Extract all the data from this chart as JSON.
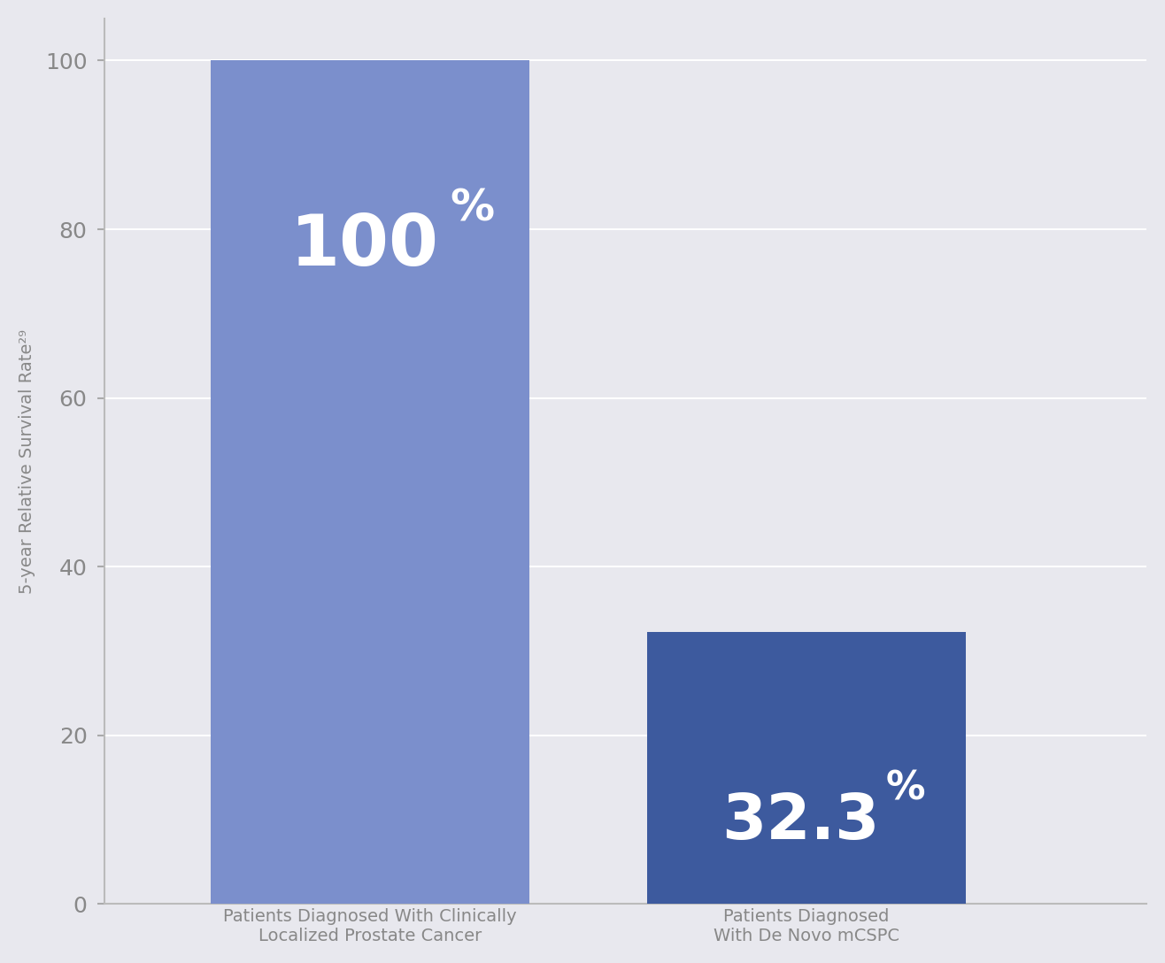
{
  "categories": [
    "Patients Diagnosed With Clinically\nLocalized Prostate Cancer",
    "Patients Diagnosed\nWith De Novo mCSPC"
  ],
  "values": [
    100,
    32.3
  ],
  "bar_colors": [
    "#7b8fcc",
    "#3d5a9e"
  ],
  "bar_labels_main": [
    "100",
    "32.3"
  ],
  "bar_labels_pct": [
    "%",
    "%"
  ],
  "ylabel": "5-year Relative Survival Rate²⁹",
  "ylim": [
    0,
    105
  ],
  "yticks": [
    0,
    20,
    40,
    60,
    80,
    100
  ],
  "background_color": "#e8e8ee",
  "label_color": "#ffffff",
  "label_fontsize_bar1": 58,
  "label_fontsize_bar2": 52,
  "pct_fontsize_bar1": 36,
  "pct_fontsize_bar2": 32,
  "axis_label_color": "#888888",
  "tick_label_color": "#888888",
  "bar_width": 0.3,
  "x_positions": [
    0.27,
    0.68
  ]
}
